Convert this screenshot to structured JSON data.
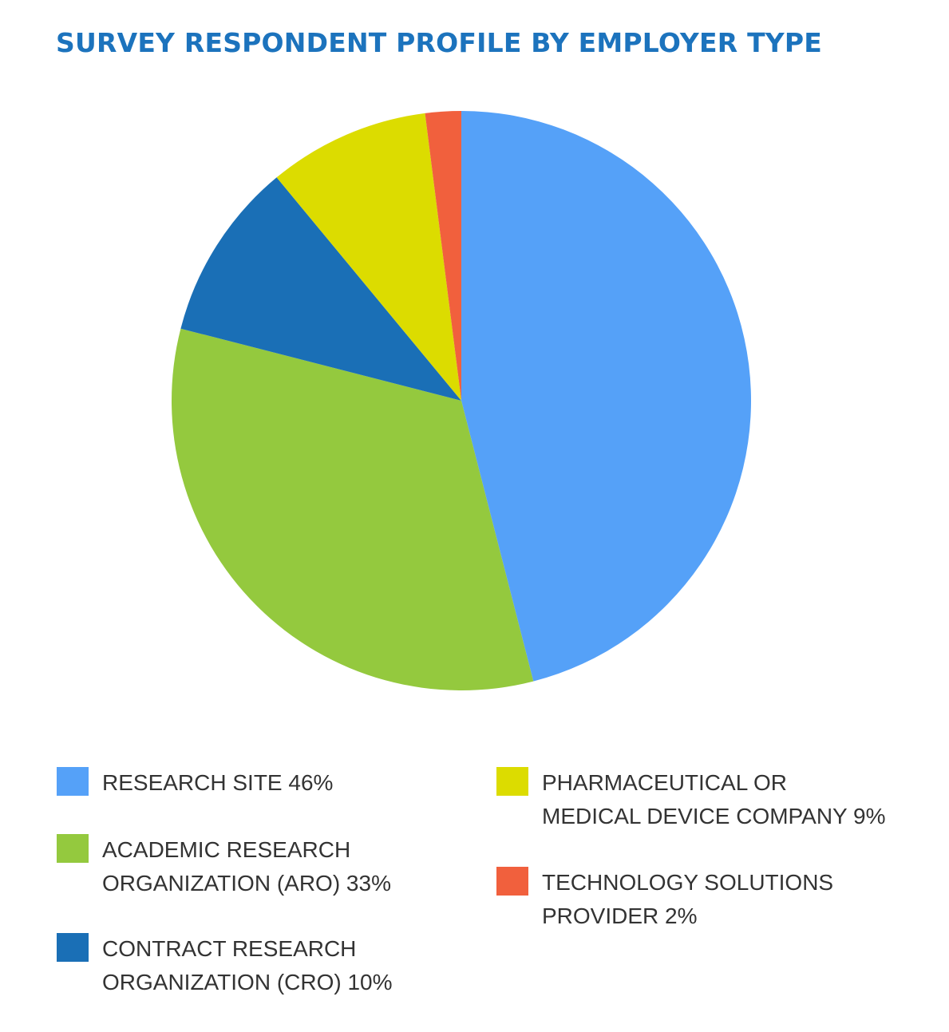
{
  "chart_data": {
    "type": "pie",
    "title": "SURVEY RESPONDENT PROFILE BY EMPLOYER TYPE",
    "legend_position": "bottom",
    "slices": [
      {
        "label": "RESEARCH SITE 46%",
        "value": 46,
        "color": "#55a1f8"
      },
      {
        "label": "ACADEMIC RESEARCH\nORGANIZATION (ARO) 33%",
        "value": 33,
        "color": "#94c93e"
      },
      {
        "label": "CONTRACT RESEARCH\nORGANIZATION (CRO) 10%",
        "value": 10,
        "color": "#1a6fb6"
      },
      {
        "label": "PHARMACEUTICAL OR\nMEDICAL DEVICE  COMPANY 9%",
        "value": 9,
        "color": "#dcdc00"
      },
      {
        "label": "TECHNOLOGY SOLUTIONS\nPROVIDER 2%",
        "value": 2,
        "color": "#f1603d"
      }
    ]
  }
}
